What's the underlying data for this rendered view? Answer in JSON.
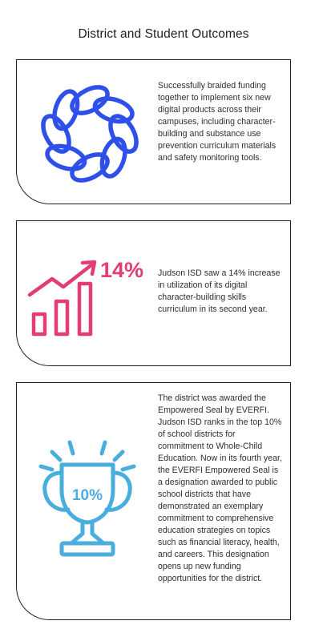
{
  "page": {
    "title": "District and Student Outcomes"
  },
  "cards": [
    {
      "icon": "braided-ring-icon",
      "icon_color": "#2e4fe8",
      "text": "Successfully braided funding together to implement six new digital products across their campuses, including character-building and substance use prevention curriculum materials and safety monitoring tools."
    },
    {
      "icon": "bar-chart-growth-icon",
      "icon_color": "#e33d78",
      "stat": "14%",
      "text": "Judson ISD saw a 14% increase in utilization of its digital character-building skills curriculum in its second year."
    },
    {
      "icon": "trophy-icon",
      "icon_color": "#49aede",
      "stat": "10%",
      "text": "The district was awarded the Empowered Seal by EVERFI. Judson ISD ranks in the top 10% of school districts for commitment to Whole-Child Education. Now in its fourth year, the EVERFI Empowered Seal is a designation awarded to public school districts that have demonstrated an exemplary commitment to comprehensive education strategies on topics such as financial literacy, health, and careers. This designation opens up new funding opportunities for the district."
    }
  ]
}
